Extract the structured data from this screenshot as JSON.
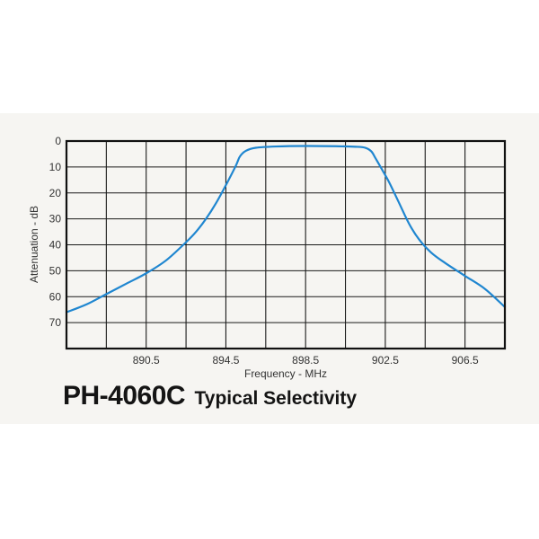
{
  "caption": {
    "model": "PH-4060C",
    "subtitle": "Typical Selectivity"
  },
  "chart_data": {
    "type": "line",
    "xlabel": "Frequency - MHz",
    "ylabel": "Attenuation - dB",
    "xlim": [
      886.5,
      908.5
    ],
    "ylim": [
      0,
      80
    ],
    "y_inverted": true,
    "grid": true,
    "x_ticks": [
      {
        "value": 888.5,
        "label": ""
      },
      {
        "value": 890.5,
        "label": "890.5"
      },
      {
        "value": 892.5,
        "label": ""
      },
      {
        "value": 894.5,
        "label": "894.5"
      },
      {
        "value": 896.5,
        "label": ""
      },
      {
        "value": 898.5,
        "label": "898.5"
      },
      {
        "value": 900.5,
        "label": ""
      },
      {
        "value": 902.5,
        "label": "902.5"
      },
      {
        "value": 904.5,
        "label": ""
      },
      {
        "value": 906.5,
        "label": "906.5"
      }
    ],
    "y_ticks": [
      {
        "value": 0,
        "label": "0"
      },
      {
        "value": 10,
        "label": "10"
      },
      {
        "value": 20,
        "label": "20"
      },
      {
        "value": 30,
        "label": "30"
      },
      {
        "value": 40,
        "label": "40"
      },
      {
        "value": 50,
        "label": "50"
      },
      {
        "value": 60,
        "label": "60"
      },
      {
        "value": 70,
        "label": "70"
      }
    ],
    "series": [
      {
        "color": "#1f86d0",
        "points": [
          [
            886.5,
            66
          ],
          [
            887.5,
            63
          ],
          [
            888.5,
            59
          ],
          [
            889.5,
            55
          ],
          [
            890.5,
            51
          ],
          [
            891.5,
            46
          ],
          [
            892.5,
            39
          ],
          [
            893.0,
            35
          ],
          [
            893.5,
            30
          ],
          [
            894.0,
            24
          ],
          [
            894.5,
            17
          ],
          [
            895.0,
            9.5
          ],
          [
            895.2,
            6
          ],
          [
            895.5,
            3.8
          ],
          [
            896.0,
            2.6
          ],
          [
            897.0,
            2.1
          ],
          [
            898.5,
            1.9
          ],
          [
            900.0,
            2.0
          ],
          [
            901.0,
            2.2
          ],
          [
            901.5,
            2.6
          ],
          [
            901.8,
            4.0
          ],
          [
            902.0,
            6.5
          ],
          [
            902.3,
            10.5
          ],
          [
            902.7,
            16
          ],
          [
            903.2,
            24
          ],
          [
            903.7,
            32
          ],
          [
            904.2,
            38
          ],
          [
            904.8,
            43
          ],
          [
            905.5,
            47
          ],
          [
            906.5,
            52
          ],
          [
            907.5,
            57
          ],
          [
            908.5,
            64
          ]
        ]
      }
    ]
  }
}
